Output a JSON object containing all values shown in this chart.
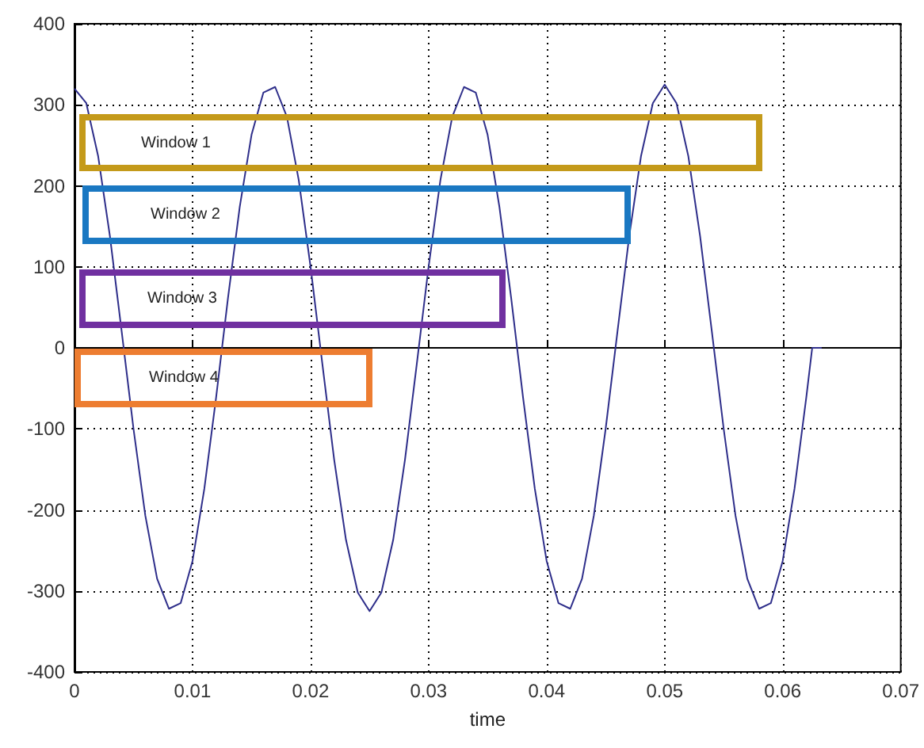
{
  "chart_data": {
    "type": "line",
    "xlabel": "time",
    "x": [
      0,
      0.001,
      0.002,
      0.003,
      0.004,
      0.005,
      0.006,
      0.007,
      0.008,
      0.009,
      0.01,
      0.011,
      0.012,
      0.013,
      0.014,
      0.015,
      0.016,
      0.017,
      0.018,
      0.019,
      0.02,
      0.021,
      0.022,
      0.023,
      0.024,
      0.025,
      0.026,
      0.027,
      0.028,
      0.029,
      0.03,
      0.031,
      0.032,
      0.033,
      0.034,
      0.035,
      0.036,
      0.037,
      0.038,
      0.039,
      0.04,
      0.041,
      0.042,
      0.043,
      0.044,
      0.045,
      0.046,
      0.047,
      0.048,
      0.049,
      0.05,
      0.051,
      0.052,
      0.053,
      0.054,
      0.055,
      0.056,
      0.057,
      0.058,
      0.059,
      0.06,
      0.061,
      0.062,
      0.0625,
      0.0633
    ],
    "series": [
      {
        "color": "#2e2e8a",
        "values": [
          320,
          302,
          237,
          138,
          20,
          -100,
          -207,
          -285,
          -322,
          -315,
          -263,
          -174,
          -61,
          61,
          174,
          263,
          315,
          322,
          285,
          207,
          100,
          -20,
          -138,
          -237,
          -302,
          -325,
          -302,
          -237,
          -138,
          -20,
          100,
          207,
          285,
          322,
          315,
          263,
          174,
          61,
          -61,
          -174,
          -263,
          -315,
          -322,
          -285,
          -207,
          -100,
          20,
          138,
          237,
          302,
          325,
          302,
          237,
          138,
          20,
          -100,
          -207,
          -285,
          -322,
          -315,
          -263,
          -174,
          -61,
          0,
          0
        ]
      }
    ],
    "xlim": [
      0,
      0.07
    ],
    "xticks": [
      0,
      0.01,
      0.02,
      0.03,
      0.04,
      0.05,
      0.06,
      0.07
    ],
    "ylim": [
      -400,
      400
    ],
    "yticks": [
      -400,
      -300,
      -200,
      -100,
      0,
      100,
      200,
      300,
      400
    ],
    "grid": true,
    "marker": "none",
    "line_style": "solid",
    "annotations": [
      "Window 1",
      "Window 2",
      "Window 3",
      "Window 4"
    ]
  }
}
